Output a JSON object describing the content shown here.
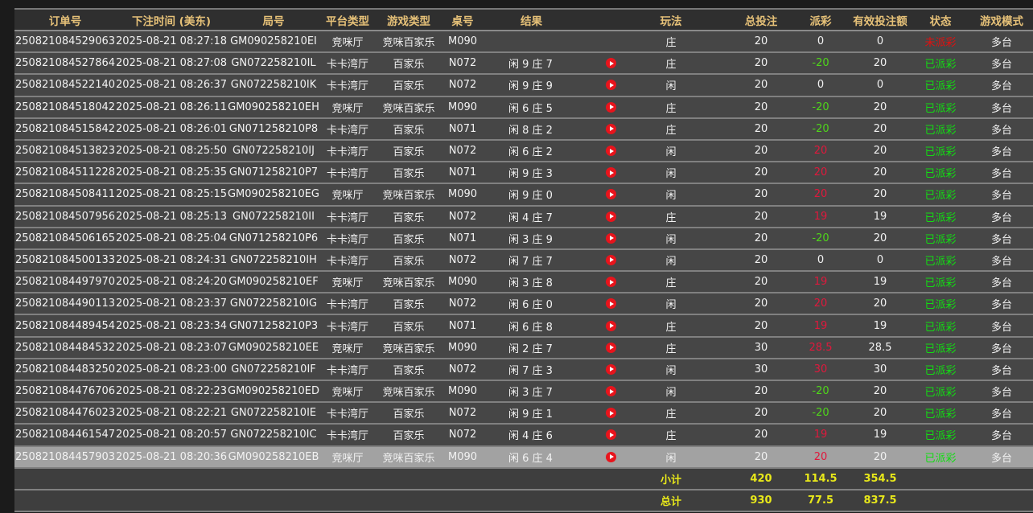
{
  "headers": [
    "订单号",
    "下注时间 (美东)",
    "局号",
    "平台类型",
    "游戏类型",
    "桌号",
    "结果",
    "玩法",
    "总投注",
    "派彩",
    "有效投注额",
    "状态",
    "游戏模式"
  ],
  "colors": {
    "header_text": "#e6c178",
    "payout_positive": "#e0183c",
    "payout_negative": "#4fd61a",
    "status_paid": "#12dd12",
    "status_unpaid": "#e01010",
    "summary_text": "#e8e81a",
    "selected_row": "#a2a2a2"
  },
  "rows": [
    {
      "order": "250821084529063",
      "time": "2025-08-21 08:27:18",
      "round": "GM090258210EI",
      "platform": "竞咪厅",
      "game": "竞咪百家乐",
      "table": "M090",
      "result": "",
      "video": false,
      "play": "庄",
      "bet": "20",
      "payout": "0",
      "valid": "0",
      "status": "未派彩",
      "mode": "多台"
    },
    {
      "order": "250821084527864",
      "time": "2025-08-21 08:27:08",
      "round": "GN072258210IL",
      "platform": "卡卡湾厅",
      "game": "百家乐",
      "table": "N072",
      "result": "闲 9 庄 7",
      "video": true,
      "play": "庄",
      "bet": "20",
      "payout": "-20",
      "valid": "20",
      "status": "已派彩",
      "mode": "多台"
    },
    {
      "order": "250821084522140",
      "time": "2025-08-21 08:26:37",
      "round": "GN072258210IK",
      "platform": "卡卡湾厅",
      "game": "百家乐",
      "table": "N072",
      "result": "闲 9 庄 9",
      "video": true,
      "play": "闲",
      "bet": "20",
      "payout": "0",
      "valid": "0",
      "status": "已派彩",
      "mode": "多台"
    },
    {
      "order": "250821084518042",
      "time": "2025-08-21 08:26:11",
      "round": "GM090258210EH",
      "platform": "竞咪厅",
      "game": "竞咪百家乐",
      "table": "M090",
      "result": "闲 6 庄 5",
      "video": true,
      "play": "庄",
      "bet": "20",
      "payout": "-20",
      "valid": "20",
      "status": "已派彩",
      "mode": "多台"
    },
    {
      "order": "250821084515842",
      "time": "2025-08-21 08:26:01",
      "round": "GN071258210P8",
      "platform": "卡卡湾厅",
      "game": "百家乐",
      "table": "N071",
      "result": "闲 8 庄 2",
      "video": true,
      "play": "庄",
      "bet": "20",
      "payout": "-20",
      "valid": "20",
      "status": "已派彩",
      "mode": "多台"
    },
    {
      "order": "250821084513823",
      "time": "2025-08-21 08:25:50",
      "round": "GN072258210IJ",
      "platform": "卡卡湾厅",
      "game": "百家乐",
      "table": "N072",
      "result": "闲 6 庄 2",
      "video": true,
      "play": "闲",
      "bet": "20",
      "payout": "20",
      "valid": "20",
      "status": "已派彩",
      "mode": "多台"
    },
    {
      "order": "250821084511228",
      "time": "2025-08-21 08:25:35",
      "round": "GN071258210P7",
      "platform": "卡卡湾厅",
      "game": "百家乐",
      "table": "N071",
      "result": "闲 9 庄 3",
      "video": true,
      "play": "闲",
      "bet": "20",
      "payout": "20",
      "valid": "20",
      "status": "已派彩",
      "mode": "多台"
    },
    {
      "order": "250821084508411",
      "time": "2025-08-21 08:25:15",
      "round": "GM090258210EG",
      "platform": "竞咪厅",
      "game": "竞咪百家乐",
      "table": "M090",
      "result": "闲 9 庄 0",
      "video": true,
      "play": "闲",
      "bet": "20",
      "payout": "20",
      "valid": "20",
      "status": "已派彩",
      "mode": "多台"
    },
    {
      "order": "250821084507956",
      "time": "2025-08-21 08:25:13",
      "round": "GN072258210II",
      "platform": "卡卡湾厅",
      "game": "百家乐",
      "table": "N072",
      "result": "闲 4 庄 7",
      "video": true,
      "play": "庄",
      "bet": "20",
      "payout": "19",
      "valid": "19",
      "status": "已派彩",
      "mode": "多台"
    },
    {
      "order": "250821084506165",
      "time": "2025-08-21 08:25:04",
      "round": "GN071258210P6",
      "platform": "卡卡湾厅",
      "game": "百家乐",
      "table": "N071",
      "result": "闲 3 庄 9",
      "video": true,
      "play": "闲",
      "bet": "20",
      "payout": "-20",
      "valid": "20",
      "status": "已派彩",
      "mode": "多台"
    },
    {
      "order": "250821084500133",
      "time": "2025-08-21 08:24:31",
      "round": "GN072258210IH",
      "platform": "卡卡湾厅",
      "game": "百家乐",
      "table": "N072",
      "result": "闲 7 庄 7",
      "video": true,
      "play": "闲",
      "bet": "20",
      "payout": "0",
      "valid": "0",
      "status": "已派彩",
      "mode": "多台"
    },
    {
      "order": "250821084497970",
      "time": "2025-08-21 08:24:20",
      "round": "GM090258210EF",
      "platform": "竞咪厅",
      "game": "竞咪百家乐",
      "table": "M090",
      "result": "闲 3 庄 8",
      "video": true,
      "play": "庄",
      "bet": "20",
      "payout": "19",
      "valid": "19",
      "status": "已派彩",
      "mode": "多台"
    },
    {
      "order": "250821084490113",
      "time": "2025-08-21 08:23:37",
      "round": "GN072258210IG",
      "platform": "卡卡湾厅",
      "game": "百家乐",
      "table": "N072",
      "result": "闲 6 庄 0",
      "video": true,
      "play": "闲",
      "bet": "20",
      "payout": "20",
      "valid": "20",
      "status": "已派彩",
      "mode": "多台"
    },
    {
      "order": "250821084489454",
      "time": "2025-08-21 08:23:34",
      "round": "GN071258210P3",
      "platform": "卡卡湾厅",
      "game": "百家乐",
      "table": "N071",
      "result": "闲 6 庄 8",
      "video": true,
      "play": "庄",
      "bet": "20",
      "payout": "19",
      "valid": "19",
      "status": "已派彩",
      "mode": "多台"
    },
    {
      "order": "250821084484532",
      "time": "2025-08-21 08:23:07",
      "round": "GM090258210EE",
      "platform": "竞咪厅",
      "game": "竞咪百家乐",
      "table": "M090",
      "result": "闲 2 庄 7",
      "video": true,
      "play": "庄",
      "bet": "30",
      "payout": "28.5",
      "valid": "28.5",
      "status": "已派彩",
      "mode": "多台"
    },
    {
      "order": "250821084483250",
      "time": "2025-08-21 08:23:00",
      "round": "GN072258210IF",
      "platform": "卡卡湾厅",
      "game": "百家乐",
      "table": "N072",
      "result": "闲 7 庄 3",
      "video": true,
      "play": "闲",
      "bet": "30",
      "payout": "30",
      "valid": "30",
      "status": "已派彩",
      "mode": "多台"
    },
    {
      "order": "250821084476706",
      "time": "2025-08-21 08:22:23",
      "round": "GM090258210ED",
      "platform": "竞咪厅",
      "game": "竞咪百家乐",
      "table": "M090",
      "result": "闲 3 庄 7",
      "video": true,
      "play": "闲",
      "bet": "20",
      "payout": "-20",
      "valid": "20",
      "status": "已派彩",
      "mode": "多台"
    },
    {
      "order": "250821084476023",
      "time": "2025-08-21 08:22:21",
      "round": "GN072258210IE",
      "platform": "卡卡湾厅",
      "game": "百家乐",
      "table": "N072",
      "result": "闲 9 庄 1",
      "video": true,
      "play": "庄",
      "bet": "20",
      "payout": "-20",
      "valid": "20",
      "status": "已派彩",
      "mode": "多台"
    },
    {
      "order": "250821084461547",
      "time": "2025-08-21 08:20:57",
      "round": "GN072258210IC",
      "platform": "卡卡湾厅",
      "game": "百家乐",
      "table": "N072",
      "result": "闲 4 庄 6",
      "video": true,
      "play": "庄",
      "bet": "20",
      "payout": "19",
      "valid": "19",
      "status": "已派彩",
      "mode": "多台"
    },
    {
      "order": "250821084457903",
      "time": "2025-08-21 08:20:36",
      "round": "GM090258210EB",
      "platform": "竞咪厅",
      "game": "竞咪百家乐",
      "table": "M090",
      "result": "闲 6 庄 4",
      "video": true,
      "play": "闲",
      "bet": "20",
      "payout": "20",
      "valid": "20",
      "status": "已派彩",
      "mode": "多台",
      "selected": true
    }
  ],
  "subtotal": {
    "label": "小计",
    "bet": "420",
    "payout": "114.5",
    "valid": "354.5"
  },
  "total": {
    "label": "总计",
    "bet": "930",
    "payout": "77.5",
    "valid": "837.5"
  }
}
